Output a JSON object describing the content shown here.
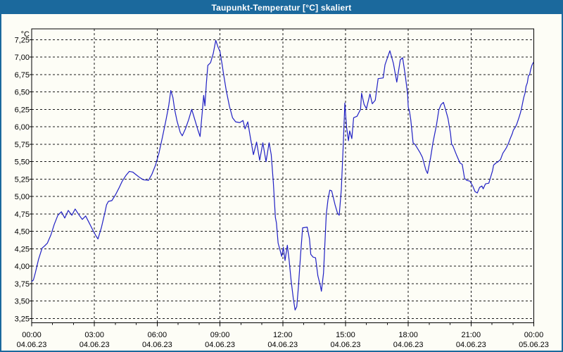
{
  "window": {
    "title": "Taupunkt-Temperatur [°C] skaliert",
    "title_bar_color": "#1b699d",
    "title_text_color": "#ffffff",
    "border_color": "#1b699d",
    "background_color": "#fdfdf6"
  },
  "chart_data": {
    "type": "line",
    "title": "Taupunkt-Temperatur [°C] skaliert",
    "unit_label": "°C",
    "line_color": "#2020c4",
    "grid": "dashed",
    "grid_color": "#1a1a1a",
    "ylim": [
      3.25,
      7.25
    ],
    "ytick_step": 0.25,
    "ytick_labels": [
      "7,25",
      "7,00",
      "6,75",
      "6,50",
      "6,25",
      "6,00",
      "5,75",
      "5,50",
      "5,25",
      "5,00",
      "4,75",
      "4,50",
      "4,25",
      "4,00",
      "3,75",
      "3,50",
      "3,25"
    ],
    "x_hours_range": [
      0,
      24
    ],
    "x_minor_tick_every_hours": 1,
    "x_major_ticks": [
      {
        "hour": 0,
        "time": "00:00",
        "date": "04.06.23"
      },
      {
        "hour": 3,
        "time": "03:00",
        "date": "04.06.23"
      },
      {
        "hour": 6,
        "time": "06:00",
        "date": "04.06.23"
      },
      {
        "hour": 9,
        "time": "09:00",
        "date": "04.06.23"
      },
      {
        "hour": 12,
        "time": "12:00",
        "date": "04.06.23"
      },
      {
        "hour": 15,
        "time": "15:00",
        "date": "04.06.23"
      },
      {
        "hour": 18,
        "time": "18:00",
        "date": "04.06.23"
      },
      {
        "hour": 21,
        "time": "21:00",
        "date": "04.06.23"
      },
      {
        "hour": 24,
        "time": "00:00",
        "date": "05.06.23"
      }
    ],
    "series": [
      {
        "name": "Taupunkt-Temperatur",
        "points": [
          [
            0.0,
            3.78
          ],
          [
            0.08,
            3.8
          ],
          [
            0.17,
            3.9
          ],
          [
            0.33,
            4.1
          ],
          [
            0.5,
            4.26
          ],
          [
            0.62,
            4.29
          ],
          [
            0.75,
            4.33
          ],
          [
            0.92,
            4.45
          ],
          [
            1.08,
            4.6
          ],
          [
            1.25,
            4.73
          ],
          [
            1.42,
            4.78
          ],
          [
            1.58,
            4.69
          ],
          [
            1.75,
            4.8
          ],
          [
            1.92,
            4.73
          ],
          [
            2.08,
            4.82
          ],
          [
            2.25,
            4.74
          ],
          [
            2.42,
            4.67
          ],
          [
            2.58,
            4.72
          ],
          [
            2.75,
            4.62
          ],
          [
            2.92,
            4.52
          ],
          [
            3.08,
            4.43
          ],
          [
            3.17,
            4.39
          ],
          [
            3.33,
            4.55
          ],
          [
            3.5,
            4.77
          ],
          [
            3.58,
            4.88
          ],
          [
            3.67,
            4.93
          ],
          [
            3.83,
            4.94
          ],
          [
            4.0,
            5.02
          ],
          [
            4.17,
            5.12
          ],
          [
            4.33,
            5.22
          ],
          [
            4.5,
            5.3
          ],
          [
            4.67,
            5.36
          ],
          [
            4.83,
            5.35
          ],
          [
            5.0,
            5.31
          ],
          [
            5.17,
            5.27
          ],
          [
            5.33,
            5.24
          ],
          [
            5.58,
            5.23
          ],
          [
            5.75,
            5.32
          ],
          [
            5.92,
            5.45
          ],
          [
            6.08,
            5.62
          ],
          [
            6.25,
            5.85
          ],
          [
            6.42,
            6.1
          ],
          [
            6.55,
            6.3
          ],
          [
            6.65,
            6.52
          ],
          [
            6.75,
            6.42
          ],
          [
            6.83,
            6.25
          ],
          [
            6.95,
            6.08
          ],
          [
            7.1,
            5.92
          ],
          [
            7.2,
            5.87
          ],
          [
            7.35,
            5.97
          ],
          [
            7.5,
            6.1
          ],
          [
            7.65,
            6.25
          ],
          [
            7.8,
            6.1
          ],
          [
            7.95,
            5.95
          ],
          [
            8.05,
            5.86
          ],
          [
            8.15,
            6.2
          ],
          [
            8.22,
            6.45
          ],
          [
            8.28,
            6.3
          ],
          [
            8.35,
            6.62
          ],
          [
            8.42,
            6.88
          ],
          [
            8.55,
            6.92
          ],
          [
            8.68,
            7.05
          ],
          [
            8.8,
            7.24
          ],
          [
            8.9,
            7.15
          ],
          [
            9.0,
            7.08
          ],
          [
            9.1,
            6.9
          ],
          [
            9.17,
            6.76
          ],
          [
            9.3,
            6.52
          ],
          [
            9.45,
            6.3
          ],
          [
            9.6,
            6.13
          ],
          [
            9.75,
            6.07
          ],
          [
            9.95,
            6.06
          ],
          [
            10.1,
            6.09
          ],
          [
            10.2,
            5.97
          ],
          [
            10.33,
            6.07
          ],
          [
            10.45,
            5.85
          ],
          [
            10.6,
            5.6
          ],
          [
            10.75,
            5.78
          ],
          [
            10.9,
            5.52
          ],
          [
            11.05,
            5.77
          ],
          [
            11.2,
            5.5
          ],
          [
            11.35,
            5.77
          ],
          [
            11.45,
            5.6
          ],
          [
            11.55,
            5.2
          ],
          [
            11.65,
            4.7
          ],
          [
            11.7,
            4.62
          ],
          [
            11.78,
            4.33
          ],
          [
            11.88,
            4.22
          ],
          [
            11.95,
            4.14
          ],
          [
            12.03,
            4.27
          ],
          [
            12.11,
            4.08
          ],
          [
            12.22,
            4.3
          ],
          [
            12.3,
            4.1
          ],
          [
            12.4,
            3.8
          ],
          [
            12.5,
            3.55
          ],
          [
            12.59,
            3.37
          ],
          [
            12.67,
            3.42
          ],
          [
            12.75,
            3.7
          ],
          [
            12.85,
            4.15
          ],
          [
            12.95,
            4.55
          ],
          [
            13.17,
            4.56
          ],
          [
            13.28,
            4.39
          ],
          [
            13.34,
            4.17
          ],
          [
            13.45,
            4.13
          ],
          [
            13.57,
            4.12
          ],
          [
            13.68,
            3.86
          ],
          [
            13.79,
            3.73
          ],
          [
            13.85,
            3.64
          ],
          [
            13.95,
            3.9
          ],
          [
            14.08,
            4.74
          ],
          [
            14.16,
            4.95
          ],
          [
            14.25,
            5.09
          ],
          [
            14.34,
            5.08
          ],
          [
            14.5,
            4.88
          ],
          [
            14.62,
            4.76
          ],
          [
            14.7,
            4.73
          ],
          [
            14.8,
            5.1
          ],
          [
            14.9,
            5.8
          ],
          [
            14.97,
            6.34
          ],
          [
            15.05,
            6.0
          ],
          [
            15.14,
            5.8
          ],
          [
            15.2,
            5.94
          ],
          [
            15.3,
            5.83
          ],
          [
            15.39,
            6.13
          ],
          [
            15.55,
            6.15
          ],
          [
            15.72,
            6.25
          ],
          [
            15.77,
            6.48
          ],
          [
            15.89,
            6.32
          ],
          [
            16.0,
            6.26
          ],
          [
            16.17,
            6.47
          ],
          [
            16.28,
            6.33
          ],
          [
            16.42,
            6.38
          ],
          [
            16.56,
            6.69
          ],
          [
            16.8,
            6.7
          ],
          [
            16.89,
            6.89
          ],
          [
            17.12,
            7.09
          ],
          [
            17.29,
            6.91
          ],
          [
            17.45,
            6.64
          ],
          [
            17.62,
            6.96
          ],
          [
            17.73,
            6.99
          ],
          [
            17.85,
            6.75
          ],
          [
            17.97,
            6.47
          ],
          [
            18.0,
            6.28
          ],
          [
            18.06,
            6.22
          ],
          [
            18.12,
            6.1
          ],
          [
            18.23,
            5.77
          ],
          [
            18.34,
            5.74
          ],
          [
            18.56,
            5.63
          ],
          [
            18.68,
            5.56
          ],
          [
            18.84,
            5.38
          ],
          [
            18.92,
            5.33
          ],
          [
            19.07,
            5.56
          ],
          [
            19.18,
            5.77
          ],
          [
            19.35,
            6.03
          ],
          [
            19.46,
            6.24
          ],
          [
            19.57,
            6.32
          ],
          [
            19.68,
            6.35
          ],
          [
            19.79,
            6.24
          ],
          [
            19.9,
            6.12
          ],
          [
            20.02,
            5.9
          ],
          [
            20.07,
            5.75
          ],
          [
            20.13,
            5.73
          ],
          [
            20.3,
            5.6
          ],
          [
            20.47,
            5.48
          ],
          [
            20.58,
            5.46
          ],
          [
            20.69,
            5.26
          ],
          [
            20.8,
            5.23
          ],
          [
            20.95,
            5.22
          ],
          [
            21.02,
            5.18
          ],
          [
            21.08,
            5.15
          ],
          [
            21.19,
            5.07
          ],
          [
            21.3,
            5.05
          ],
          [
            21.41,
            5.13
          ],
          [
            21.52,
            5.15
          ],
          [
            21.58,
            5.11
          ],
          [
            21.69,
            5.18
          ],
          [
            21.85,
            5.19
          ],
          [
            22.03,
            5.37
          ],
          [
            22.08,
            5.45
          ],
          [
            22.19,
            5.48
          ],
          [
            22.3,
            5.5
          ],
          [
            22.41,
            5.53
          ],
          [
            22.52,
            5.62
          ],
          [
            22.63,
            5.67
          ],
          [
            22.69,
            5.7
          ],
          [
            22.8,
            5.77
          ],
          [
            22.86,
            5.82
          ],
          [
            22.97,
            5.9
          ],
          [
            23.02,
            5.95
          ],
          [
            23.13,
            6.0
          ],
          [
            23.19,
            6.04
          ],
          [
            23.3,
            6.14
          ],
          [
            23.36,
            6.2
          ],
          [
            23.41,
            6.26
          ],
          [
            23.52,
            6.42
          ],
          [
            23.58,
            6.48
          ],
          [
            23.63,
            6.58
          ],
          [
            23.69,
            6.63
          ],
          [
            23.74,
            6.73
          ],
          [
            23.8,
            6.75
          ],
          [
            23.86,
            6.83
          ],
          [
            23.91,
            6.88
          ],
          [
            23.97,
            6.92
          ]
        ]
      }
    ]
  }
}
